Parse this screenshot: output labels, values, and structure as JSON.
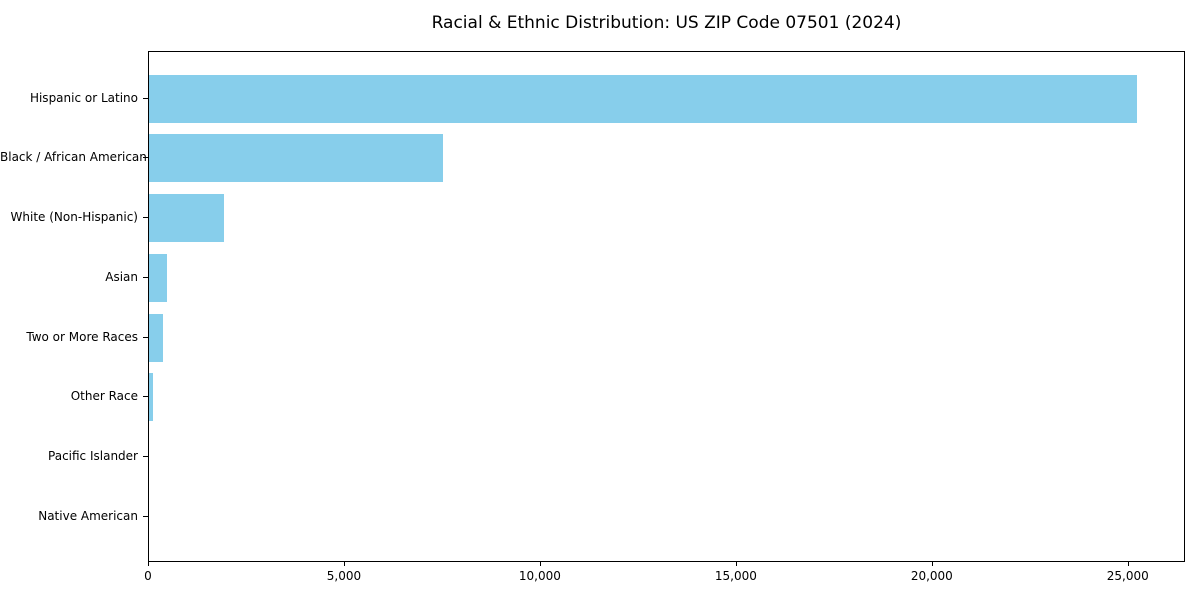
{
  "chart_data": {
    "type": "bar",
    "orientation": "horizontal",
    "title": "Racial & Ethnic Distribution: US ZIP Code 07501 (2024)",
    "categories": [
      "Hispanic or Latino",
      "Black / African American",
      "White (Non-Hispanic)",
      "Asian",
      "Two or More Races",
      "Other Race",
      "Pacific Islander",
      "Native American"
    ],
    "values": [
      25200,
      7500,
      1920,
      450,
      350,
      110,
      0,
      0
    ],
    "xlabel": "",
    "ylabel": "",
    "xlim": [
      0,
      26460
    ],
    "xticks": [
      0,
      5000,
      10000,
      15000,
      20000,
      25000
    ],
    "xtick_labels": [
      "0",
      "5,000",
      "10,000",
      "15,000",
      "20,000",
      "25,000"
    ],
    "bar_color": "#87CEEB",
    "axis_color": "#000000",
    "grid": false,
    "legend": null
  }
}
